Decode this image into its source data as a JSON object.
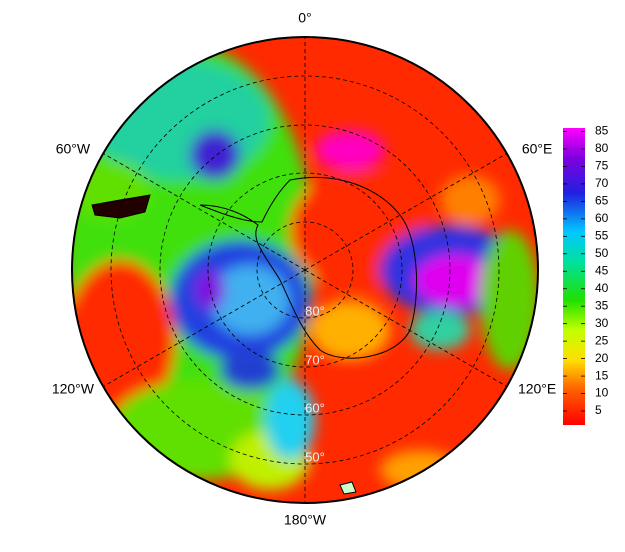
{
  "map": {
    "meridian_labels": [
      "0°",
      "60°E",
      "120°E",
      "180°W",
      "120°W",
      "60°W"
    ],
    "parallel_labels": [
      "80°",
      "70°",
      "60°",
      "50°"
    ],
    "colorbar": {
      "range": [
        1,
        86
      ],
      "ticks": [
        5,
        10,
        15,
        20,
        25,
        30,
        35,
        40,
        45,
        50,
        55,
        60,
        65,
        70,
        75,
        80,
        85
      ]
    }
  }
}
